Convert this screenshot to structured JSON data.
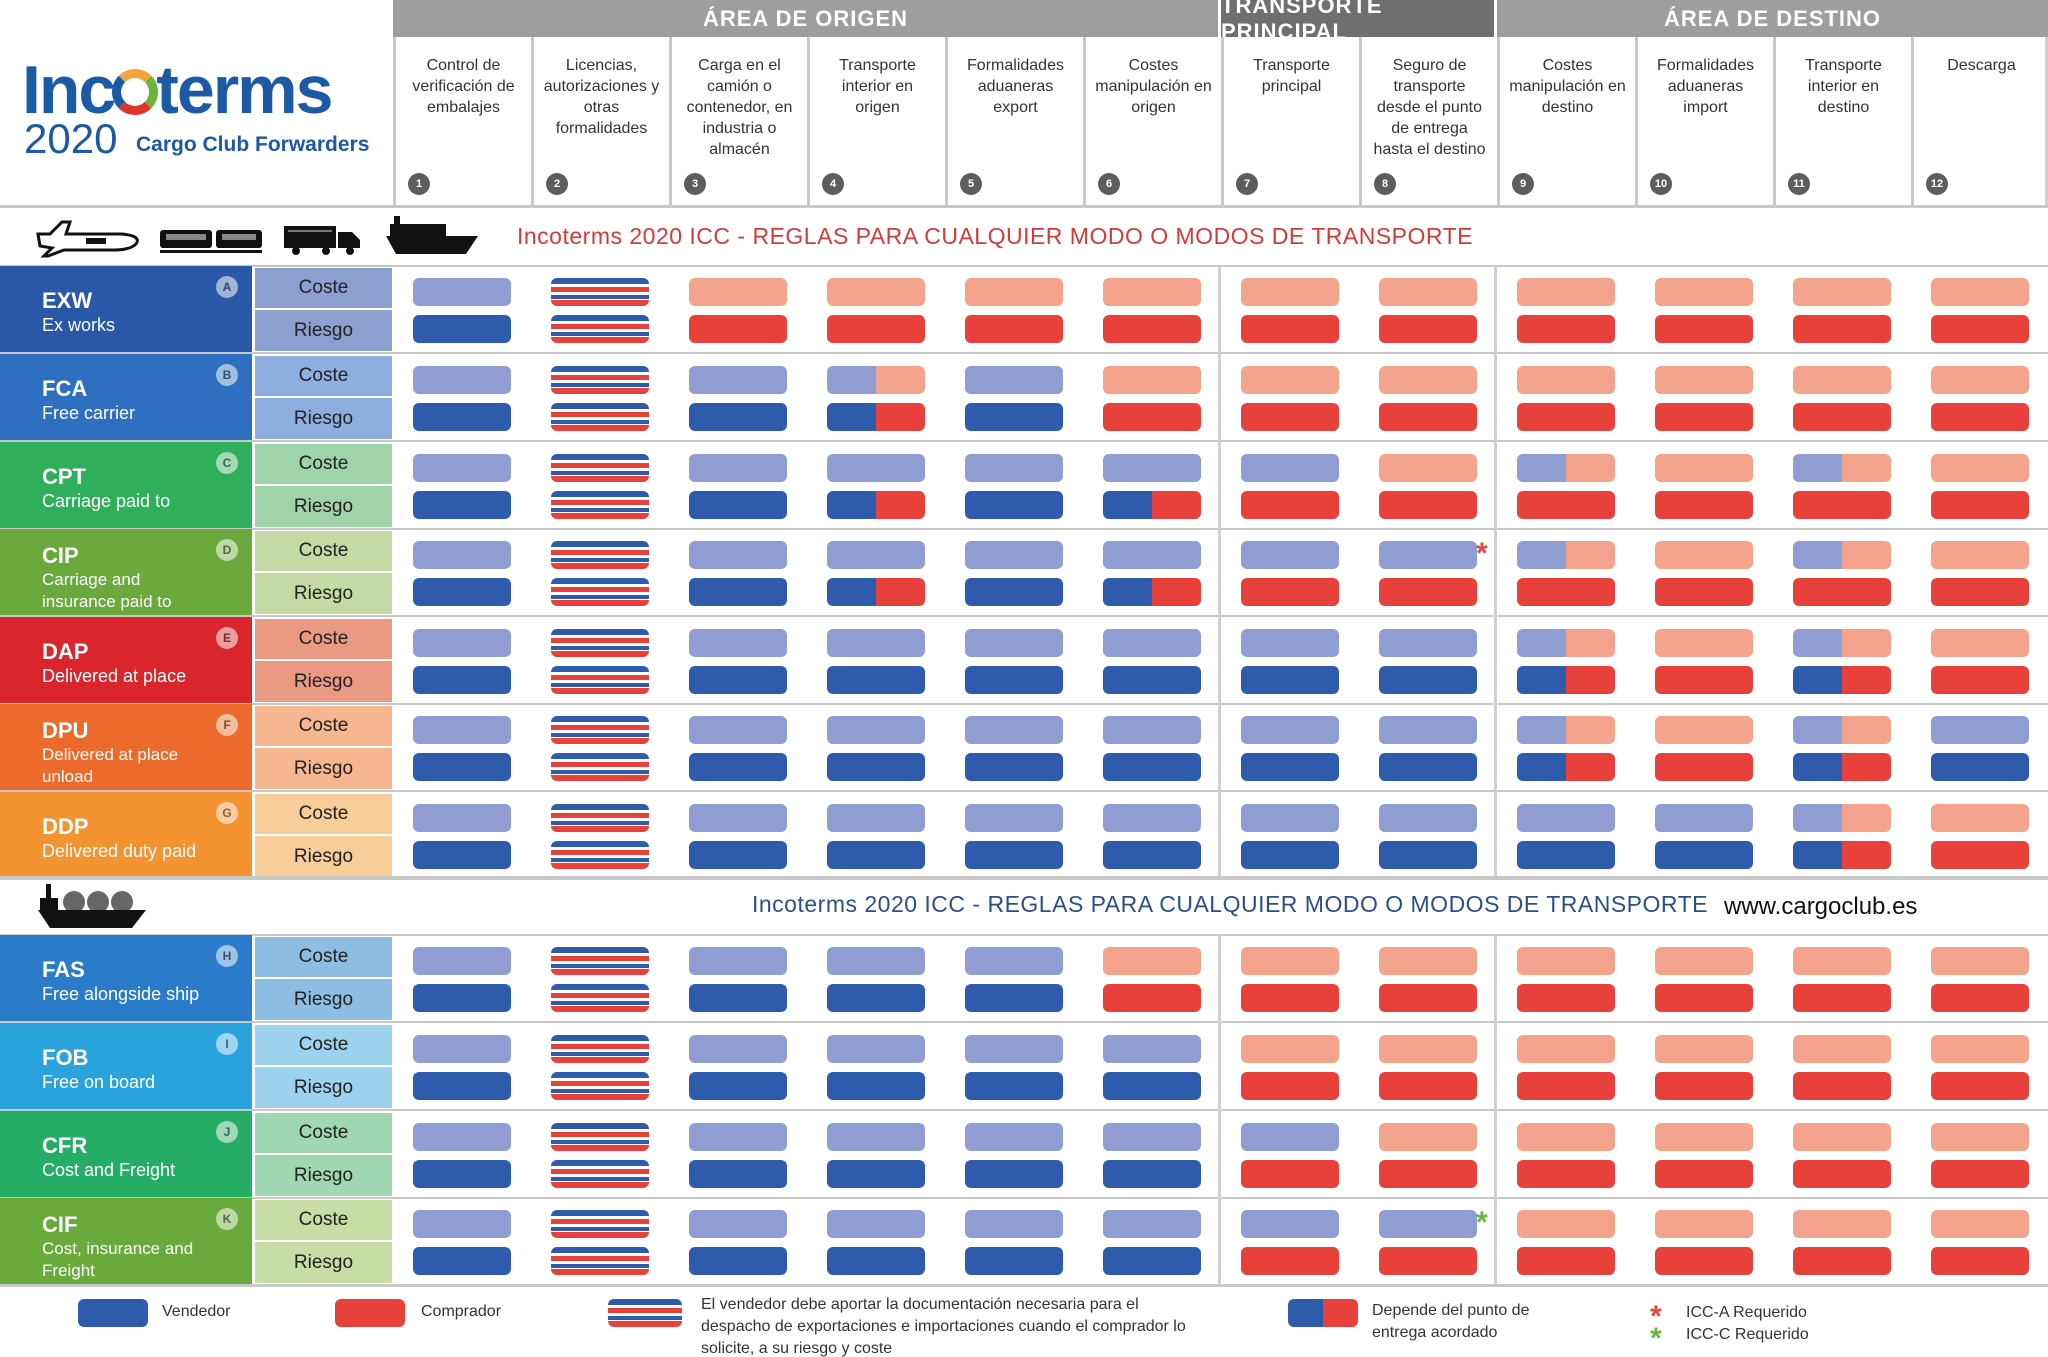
{
  "logo": {
    "brand_a": "Inc",
    "brand_b": "terms",
    "year": "2020",
    "subtitle": "Cargo Club Forwarders"
  },
  "areas": [
    {
      "label": "ÁREA DE ORIGEN",
      "color": "#9e9e9e"
    },
    {
      "label": "TRANSPORTE PRINCIPAL",
      "color": "#6f6f6f"
    },
    {
      "label": "ÁREA DE DESTINO",
      "color": "#9e9e9e"
    }
  ],
  "columns": [
    {
      "num": "1",
      "label": "Control de verificación de embalajes"
    },
    {
      "num": "2",
      "label": "Licencias, autorizaciones y otras formalidades"
    },
    {
      "num": "3",
      "label": "Carga en el camión o contenedor, en industria o almacén"
    },
    {
      "num": "4",
      "label": "Transporte interior en origen"
    },
    {
      "num": "5",
      "label": "Formalidades aduaneras export"
    },
    {
      "num": "6",
      "label": "Costes manipulación en origen"
    },
    {
      "num": "7",
      "label": "Transporte principal"
    },
    {
      "num": "8",
      "label": "Seguro de transporte desde el punto de entrega hasta el destino"
    },
    {
      "num": "9",
      "label": "Costes manipulación en destino"
    },
    {
      "num": "10",
      "label": "Formalidades aduaneras import"
    },
    {
      "num": "11",
      "label": "Transporte interior en destino"
    },
    {
      "num": "12",
      "label": "Descarga"
    }
  ],
  "sections": [
    {
      "title": "Incoterms 2020 ICC - REGLAS PARA CUALQUIER MODO O MODOS DE TRANSPORTE",
      "title_color": "#d33a3a",
      "icons": [
        "plane-icon",
        "train-icon",
        "truck-icon",
        "ship-icon"
      ]
    },
    {
      "title": "Incoterms 2020 ICC - REGLAS PARA CUALQUIER MODO O MODOS DE TRANSPORTE",
      "title_color": "#2b4f86",
      "icons": [
        "tanker-ship-icon"
      ]
    }
  ],
  "website": "www.cargoclub.es",
  "cost_label": "Coste",
  "risk_label": "Riesgo",
  "palette": {
    "V": "#2e5bab",
    "v": "#8f9dd2",
    "B": "#e8403a",
    "b": "#f4a48c",
    "X_blue": "#2e5bab",
    "X_red": "#e8403a",
    "x_blue": "#8f9dd2",
    "x_red": "#f4a48c"
  },
  "terms": [
    {
      "code": "EXW",
      "name": "Ex works",
      "letter": "A",
      "color": "#2a58a8",
      "cr_color": "#8b9fd1",
      "section": 0,
      "cost": [
        "v",
        "X",
        "b",
        "b",
        "b",
        "b",
        "b",
        "b",
        "b",
        "b",
        "b",
        "b"
      ],
      "risk": [
        "V",
        "X",
        "B",
        "B",
        "B",
        "B",
        "B",
        "B",
        "B",
        "B",
        "B",
        "B"
      ]
    },
    {
      "code": "FCA",
      "name": "Free carrier",
      "letter": "B",
      "color": "#2e6fc0",
      "cr_color": "#8eaee0",
      "section": 0,
      "cost": [
        "v",
        "X",
        "v",
        "s",
        "v",
        "b",
        "b",
        "b",
        "b",
        "b",
        "b",
        "b"
      ],
      "risk": [
        "V",
        "X",
        "V",
        "S",
        "V",
        "B",
        "B",
        "B",
        "B",
        "B",
        "B",
        "B"
      ]
    },
    {
      "code": "CPT",
      "name": "Carriage paid to",
      "letter": "C",
      "color": "#2fae5b",
      "cr_color": "#9fd3a8",
      "section": 0,
      "cost": [
        "v",
        "X",
        "v",
        "v",
        "v",
        "v",
        "v",
        "b",
        "s",
        "b",
        "s",
        "b"
      ],
      "risk": [
        "V",
        "X",
        "V",
        "S",
        "V",
        "S",
        "B",
        "B",
        "B",
        "B",
        "B",
        "B"
      ]
    },
    {
      "code": "CIP",
      "name": "Carriage and insurance paid to",
      "letter": "D",
      "color": "#6ba93c",
      "cr_color": "#c4d9a4",
      "section": 0,
      "cost": [
        "v",
        "X",
        "v",
        "v",
        "v",
        "v",
        "v",
        "v",
        "s",
        "b",
        "s",
        "b"
      ],
      "risk": [
        "V",
        "X",
        "V",
        "S",
        "V",
        "S",
        "B",
        "B",
        "B",
        "B",
        "B",
        "B"
      ]
    },
    {
      "code": "DAP",
      "name": "Delivered at place",
      "letter": "E",
      "color": "#d9252b",
      "cr_color": "#ea9a82",
      "section": 0,
      "cost": [
        "v",
        "X",
        "v",
        "v",
        "v",
        "v",
        "v",
        "v",
        "s",
        "b",
        "s",
        "b"
      ],
      "risk": [
        "V",
        "X",
        "V",
        "V",
        "V",
        "V",
        "V",
        "V",
        "S",
        "B",
        "S",
        "B"
      ]
    },
    {
      "code": "DPU",
      "name": "Delivered at place unload",
      "letter": "F",
      "color": "#ec6a2b",
      "cr_color": "#f6b690",
      "section": 0,
      "cost": [
        "v",
        "X",
        "v",
        "v",
        "v",
        "v",
        "v",
        "v",
        "s",
        "b",
        "s",
        "v"
      ],
      "risk": [
        "V",
        "X",
        "V",
        "V",
        "V",
        "V",
        "V",
        "V",
        "S",
        "B",
        "S",
        "V"
      ]
    },
    {
      "code": "DDP",
      "name": "Delivered duty paid",
      "letter": "G",
      "color": "#f39332",
      "cr_color": "#f9cd9a",
      "section": 0,
      "cost": [
        "v",
        "X",
        "v",
        "v",
        "v",
        "v",
        "v",
        "v",
        "v",
        "v",
        "s",
        "b"
      ],
      "risk": [
        "V",
        "X",
        "V",
        "V",
        "V",
        "V",
        "V",
        "V",
        "V",
        "V",
        "S",
        "B"
      ]
    },
    {
      "code": "FAS",
      "name": "Free alongside ship",
      "letter": "H",
      "color": "#2a7bc8",
      "cr_color": "#8ebde3",
      "section": 1,
      "cost": [
        "v",
        "X",
        "v",
        "v",
        "v",
        "b",
        "b",
        "b",
        "b",
        "b",
        "b",
        "b"
      ],
      "risk": [
        "V",
        "X",
        "V",
        "V",
        "V",
        "B",
        "B",
        "B",
        "B",
        "B",
        "B",
        "B"
      ]
    },
    {
      "code": "FOB",
      "name": "Free on board",
      "letter": "I",
      "color": "#2aa3dd",
      "cr_color": "#9dd2ef",
      "section": 1,
      "cost": [
        "v",
        "X",
        "v",
        "v",
        "v",
        "v",
        "b",
        "b",
        "b",
        "b",
        "b",
        "b"
      ],
      "risk": [
        "V",
        "X",
        "V",
        "V",
        "V",
        "V",
        "B",
        "B",
        "B",
        "B",
        "B",
        "B"
      ]
    },
    {
      "code": "CFR",
      "name": "Cost and Freight",
      "letter": "J",
      "color": "#26ad65",
      "cr_color": "#9fd7b0",
      "section": 1,
      "cost": [
        "v",
        "X",
        "v",
        "v",
        "v",
        "v",
        "v",
        "b",
        "b",
        "b",
        "b",
        "b"
      ],
      "risk": [
        "V",
        "X",
        "V",
        "V",
        "V",
        "V",
        "B",
        "B",
        "B",
        "B",
        "B",
        "B"
      ]
    },
    {
      "code": "CIF",
      "name": "Cost, insurance and Freight",
      "letter": "K",
      "color": "#6aaa3c",
      "cr_color": "#c8dca6",
      "section": 1,
      "cost": [
        "v",
        "X",
        "v",
        "v",
        "v",
        "v",
        "v",
        "v",
        "b",
        "b",
        "b",
        "b"
      ],
      "risk": [
        "V",
        "X",
        "V",
        "V",
        "V",
        "V",
        "B",
        "B",
        "B",
        "B",
        "B",
        "B"
      ]
    }
  ],
  "stars": [
    {
      "term": "CIP",
      "color": "#e04a3a"
    },
    {
      "term": "CIF",
      "color": "#6cb33f"
    }
  ],
  "legend": {
    "vendedor": "Vendedor",
    "comprador": "Comprador",
    "docs": "El vendedor debe aportar la documentación necesaria para el despacho de exportaciones e importaciones cuando el comprador lo solicite, a su riesgo y coste",
    "depende": "Depende del punto de entrega acordado",
    "icca": "ICC-A Requerido",
    "iccc": "ICC-C Requerido"
  }
}
